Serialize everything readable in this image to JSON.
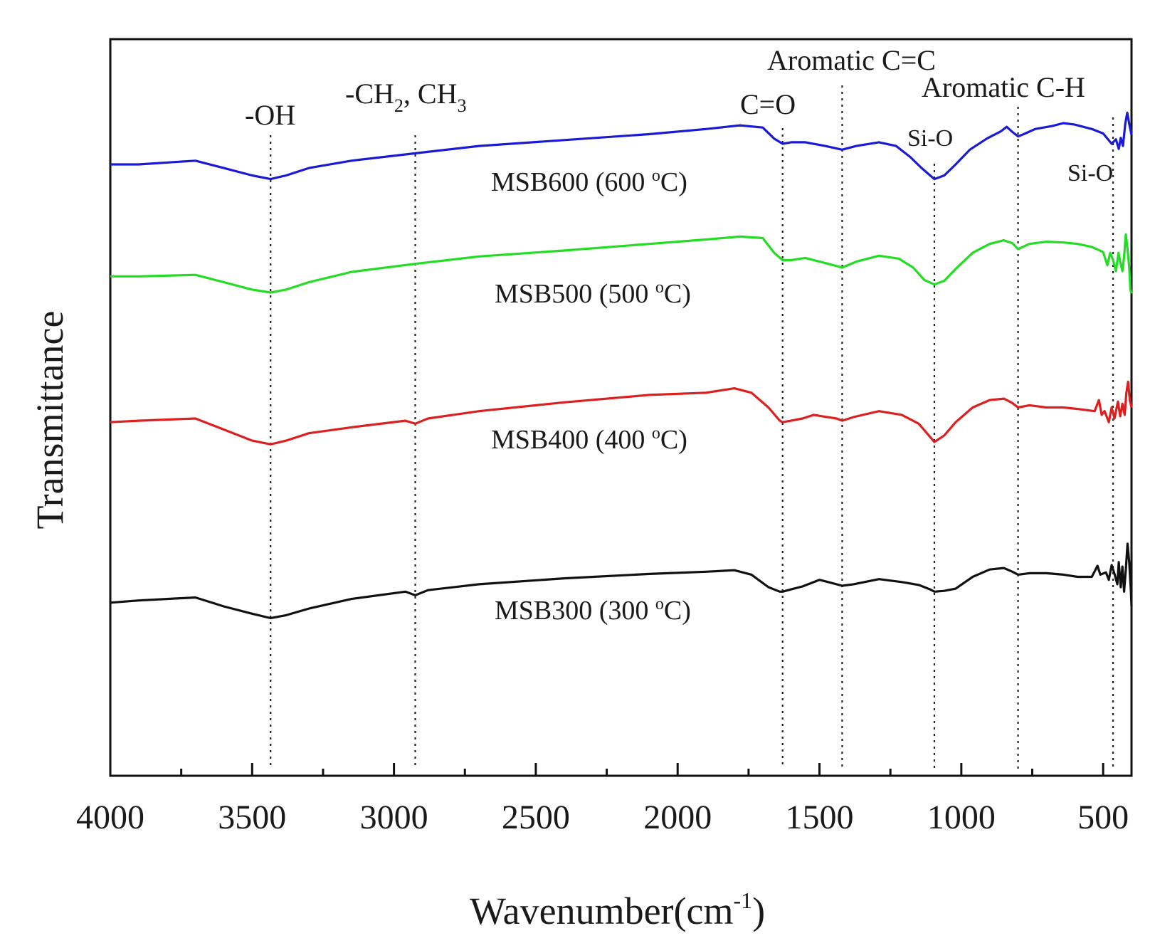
{
  "chart_data": {
    "type": "line",
    "title": "",
    "xlabel": "Wavenumber(cm",
    "xlabel_sup": "-1",
    "xlabel_close": ")",
    "ylabel": "Transmittance",
    "xlim": [
      4000,
      400
    ],
    "ylim": [
      0,
      100
    ],
    "x_ticks": [
      4000,
      3500,
      3000,
      2500,
      2000,
      1500,
      1000,
      500
    ],
    "x_tick_labels": [
      "4000",
      "3500",
      "3000",
      "2500",
      "2000",
      "1500",
      "1000",
      "500"
    ],
    "y_ticks_shown": false,
    "grid": false,
    "reference_lines": [
      {
        "x": 3435,
        "label": "-OH"
      },
      {
        "x": 2925,
        "label": "-CH2, CH3"
      },
      {
        "x": 1630,
        "label": "C=O"
      },
      {
        "x": 1420,
        "label": "Aromatic C=C"
      },
      {
        "x": 1095,
        "label": "Si-O"
      },
      {
        "x": 800,
        "label": "Aromatic C-H"
      },
      {
        "x": 465,
        "label": "Si-O"
      }
    ],
    "annotations": {
      "oh": "-OH",
      "ch_a": "-CH",
      "ch_sub2": "2",
      "ch_b": ", CH",
      "ch_sub3": "3",
      "co": "C=O",
      "cc": "Aromatic C=C",
      "sio1": "Si-O",
      "ch_arom": "Aromatic C-H",
      "sio2": "Si-O"
    },
    "series": [
      {
        "name": "MSB600",
        "label_a": "MSB600 (600 ",
        "label_sup": "o",
        "label_b": "C)",
        "color": "#1a1ad6",
        "points": [
          [
            4000,
            83
          ],
          [
            3900,
            83
          ],
          [
            3700,
            83.5
          ],
          [
            3600,
            82.5
          ],
          [
            3500,
            81.5
          ],
          [
            3435,
            81
          ],
          [
            3380,
            81.5
          ],
          [
            3300,
            82.5
          ],
          [
            3150,
            83.5
          ],
          [
            2925,
            84.5
          ],
          [
            2700,
            85.5
          ],
          [
            2400,
            86.3
          ],
          [
            2100,
            87.1
          ],
          [
            1900,
            87.8
          ],
          [
            1780,
            88.3
          ],
          [
            1700,
            88
          ],
          [
            1660,
            86.5
          ],
          [
            1630,
            85.8
          ],
          [
            1600,
            86
          ],
          [
            1550,
            86
          ],
          [
            1480,
            85.5
          ],
          [
            1420,
            85
          ],
          [
            1370,
            85.5
          ],
          [
            1290,
            86
          ],
          [
            1230,
            85.5
          ],
          [
            1180,
            84
          ],
          [
            1140,
            82.5
          ],
          [
            1110,
            81.5
          ],
          [
            1095,
            81
          ],
          [
            1060,
            81.5
          ],
          [
            1020,
            83
          ],
          [
            970,
            85
          ],
          [
            910,
            86.5
          ],
          [
            860,
            87.5
          ],
          [
            840,
            88.1
          ],
          [
            820,
            87.4
          ],
          [
            800,
            86.8
          ],
          [
            780,
            87.1
          ],
          [
            740,
            87.8
          ],
          [
            680,
            88.2
          ],
          [
            640,
            88.6
          ],
          [
            600,
            88.4
          ],
          [
            540,
            87.8
          ],
          [
            500,
            87.2
          ],
          [
            470,
            85.8
          ],
          [
            455,
            86.4
          ],
          [
            445,
            85.1
          ],
          [
            438,
            86.6
          ],
          [
            430,
            85.5
          ],
          [
            422,
            88.5
          ],
          [
            415,
            90
          ],
          [
            408,
            88.5
          ],
          [
            400,
            87
          ]
        ]
      },
      {
        "name": "MSB500",
        "label_a": "MSB500 (500 ",
        "label_sup": "o",
        "label_b": "C)",
        "color": "#22dd22",
        "points": [
          [
            4000,
            67.8
          ],
          [
            3900,
            67.8
          ],
          [
            3700,
            68
          ],
          [
            3600,
            67
          ],
          [
            3500,
            66
          ],
          [
            3435,
            65.6
          ],
          [
            3380,
            66
          ],
          [
            3300,
            67
          ],
          [
            3150,
            68.4
          ],
          [
            2925,
            69.5
          ],
          [
            2700,
            70.5
          ],
          [
            2400,
            71.3
          ],
          [
            2100,
            72.2
          ],
          [
            1900,
            72.8
          ],
          [
            1780,
            73.2
          ],
          [
            1700,
            73
          ],
          [
            1660,
            71
          ],
          [
            1630,
            70
          ],
          [
            1600,
            70
          ],
          [
            1550,
            70.3
          ],
          [
            1480,
            69.6
          ],
          [
            1420,
            69
          ],
          [
            1370,
            69.8
          ],
          [
            1290,
            70.6
          ],
          [
            1220,
            70.2
          ],
          [
            1170,
            69
          ],
          [
            1130,
            67.3
          ],
          [
            1095,
            66.7
          ],
          [
            1060,
            67.2
          ],
          [
            1020,
            68.8
          ],
          [
            960,
            71
          ],
          [
            900,
            72.2
          ],
          [
            850,
            72.7
          ],
          [
            820,
            72.3
          ],
          [
            800,
            71.5
          ],
          [
            760,
            72.2
          ],
          [
            700,
            72.5
          ],
          [
            640,
            72.4
          ],
          [
            590,
            72.2
          ],
          [
            540,
            71.8
          ],
          [
            500,
            71.1
          ],
          [
            485,
            69.3
          ],
          [
            475,
            71
          ],
          [
            465,
            70
          ],
          [
            455,
            68.5
          ],
          [
            446,
            71
          ],
          [
            440,
            69.8
          ],
          [
            432,
            68.5
          ],
          [
            426,
            70.5
          ],
          [
            420,
            73.5
          ],
          [
            414,
            71.5
          ],
          [
            408,
            69
          ],
          [
            404,
            66
          ],
          [
            400,
            65.5
          ]
        ]
      },
      {
        "name": "MSB400",
        "label_a": "MSB400 (400 ",
        "label_sup": "o",
        "label_b": "C)",
        "color": "#dd1f1f",
        "points": [
          [
            4000,
            48
          ],
          [
            3900,
            48.2
          ],
          [
            3700,
            48.5
          ],
          [
            3600,
            47
          ],
          [
            3500,
            45.5
          ],
          [
            3435,
            45
          ],
          [
            3380,
            45.5
          ],
          [
            3300,
            46.5
          ],
          [
            3150,
            47.3
          ],
          [
            2960,
            48.2
          ],
          [
            2925,
            47.8
          ],
          [
            2880,
            48.5
          ],
          [
            2700,
            49.5
          ],
          [
            2400,
            50.7
          ],
          [
            2100,
            51.7
          ],
          [
            1900,
            52
          ],
          [
            1800,
            52.6
          ],
          [
            1740,
            52
          ],
          [
            1680,
            50
          ],
          [
            1640,
            48.2
          ],
          [
            1630,
            48
          ],
          [
            1600,
            48.2
          ],
          [
            1560,
            48.5
          ],
          [
            1520,
            49
          ],
          [
            1490,
            48.8
          ],
          [
            1440,
            48.5
          ],
          [
            1420,
            48.2
          ],
          [
            1380,
            48.7
          ],
          [
            1290,
            49.5
          ],
          [
            1210,
            49
          ],
          [
            1150,
            47.8
          ],
          [
            1110,
            46
          ],
          [
            1095,
            45.3
          ],
          [
            1060,
            46.2
          ],
          [
            1020,
            48
          ],
          [
            960,
            50
          ],
          [
            900,
            51
          ],
          [
            850,
            51.2
          ],
          [
            820,
            50.6
          ],
          [
            800,
            50
          ],
          [
            760,
            50.3
          ],
          [
            700,
            50
          ],
          [
            640,
            50
          ],
          [
            590,
            49.8
          ],
          [
            530,
            49.5
          ],
          [
            515,
            51
          ],
          [
            505,
            49
          ],
          [
            495,
            49.5
          ],
          [
            480,
            48
          ],
          [
            470,
            50
          ],
          [
            460,
            48.5
          ],
          [
            448,
            50.8
          ],
          [
            440,
            48.8
          ],
          [
            432,
            50.5
          ],
          [
            424,
            49
          ],
          [
            418,
            52
          ],
          [
            412,
            53.5
          ],
          [
            406,
            51
          ],
          [
            400,
            50
          ]
        ]
      },
      {
        "name": "MSB300",
        "label_a": "MSB300 (300 ",
        "label_sup": "o",
        "label_b": "C)",
        "color": "#111111",
        "points": [
          [
            4000,
            23.5
          ],
          [
            3900,
            23.8
          ],
          [
            3700,
            24.2
          ],
          [
            3600,
            23
          ],
          [
            3500,
            22
          ],
          [
            3435,
            21.4
          ],
          [
            3380,
            21.8
          ],
          [
            3300,
            22.7
          ],
          [
            3150,
            24
          ],
          [
            2960,
            25
          ],
          [
            2925,
            24.5
          ],
          [
            2880,
            25.2
          ],
          [
            2700,
            26
          ],
          [
            2400,
            26.8
          ],
          [
            2100,
            27.4
          ],
          [
            1900,
            27.7
          ],
          [
            1800,
            27.9
          ],
          [
            1740,
            27.3
          ],
          [
            1680,
            25.6
          ],
          [
            1640,
            25
          ],
          [
            1630,
            25
          ],
          [
            1600,
            25.3
          ],
          [
            1560,
            25.7
          ],
          [
            1500,
            26.6
          ],
          [
            1460,
            26.2
          ],
          [
            1420,
            25.8
          ],
          [
            1380,
            26
          ],
          [
            1290,
            26.7
          ],
          [
            1210,
            26.3
          ],
          [
            1150,
            25.9
          ],
          [
            1110,
            25.3
          ],
          [
            1095,
            25
          ],
          [
            1060,
            25.1
          ],
          [
            1020,
            25.4
          ],
          [
            960,
            27
          ],
          [
            900,
            28
          ],
          [
            850,
            28.2
          ],
          [
            820,
            27.7
          ],
          [
            800,
            27.3
          ],
          [
            760,
            27.5
          ],
          [
            700,
            27.5
          ],
          [
            640,
            27.3
          ],
          [
            590,
            27
          ],
          [
            540,
            27
          ],
          [
            520,
            28.5
          ],
          [
            510,
            27.3
          ],
          [
            490,
            27.6
          ],
          [
            480,
            26.6
          ],
          [
            470,
            28.6
          ],
          [
            460,
            27.4
          ],
          [
            450,
            26
          ],
          [
            445,
            29
          ],
          [
            438,
            25.6
          ],
          [
            432,
            28.4
          ],
          [
            426,
            25
          ],
          [
            420,
            28
          ],
          [
            414,
            31.5
          ],
          [
            408,
            29
          ],
          [
            402,
            25
          ],
          [
            400,
            23
          ]
        ]
      }
    ]
  }
}
